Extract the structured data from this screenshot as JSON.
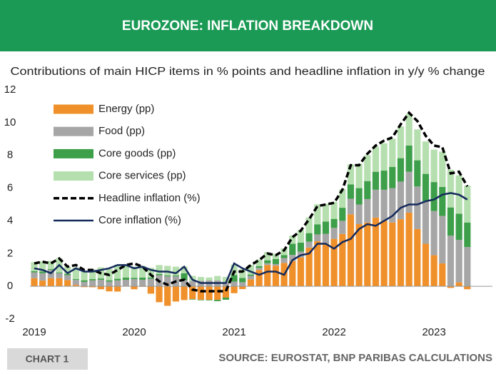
{
  "chart_data": {
    "type": "bar",
    "title": "EUROZONE: INFLATION BREAKDOWN",
    "subtitle": "Contributions of main HICP items in % points and headline inflation in y/y % change",
    "chart_label": "CHART 1",
    "source": "SOURCE: EUROSTAT, BNP PARIBAS CALCULATIONS",
    "categories": [
      "2019",
      null,
      null,
      null,
      null,
      null,
      null,
      null,
      null,
      null,
      null,
      null,
      "2020",
      null,
      null,
      null,
      null,
      null,
      null,
      null,
      null,
      null,
      null,
      null,
      "2021",
      null,
      null,
      null,
      null,
      null,
      null,
      null,
      null,
      null,
      null,
      null,
      "2022",
      null,
      null,
      null,
      null,
      null,
      null,
      null,
      null,
      null,
      null,
      null,
      "2023",
      null,
      null,
      null,
      null
    ],
    "series": [
      {
        "name": "Energy (pp)",
        "kind": "bar",
        "color": "#f0902a",
        "values": [
          0.5,
          0.35,
          0.5,
          0.5,
          0.38,
          0.09,
          -0.05,
          -0.06,
          -0.18,
          -0.31,
          -0.32,
          0.02,
          -0.18,
          -0.03,
          -0.45,
          -0.97,
          -1.19,
          -0.93,
          -0.84,
          -0.78,
          -0.82,
          -0.83,
          -0.83,
          -0.69,
          -0.42,
          -0.17,
          0.43,
          1.0,
          1.3,
          1.26,
          1.43,
          1.54,
          1.76,
          2.37,
          2.75,
          2.6,
          2.9,
          3.2,
          4.4,
          3.8,
          3.9,
          4.2,
          4.0,
          3.9,
          4.1,
          4.5,
          3.5,
          2.6,
          1.9,
          1.4,
          -0.1,
          0.24,
          -0.18
        ]
      },
      {
        "name": "Food (pp)",
        "kind": "bar",
        "color": "#a6a6a6",
        "values": [
          0.35,
          0.45,
          0.5,
          0.3,
          0.3,
          0.3,
          0.27,
          0.36,
          0.4,
          0.29,
          0.36,
          0.38,
          0.44,
          0.4,
          0.46,
          0.68,
          0.61,
          0.61,
          0.38,
          0.32,
          0.34,
          0.36,
          0.36,
          0.25,
          0.29,
          0.25,
          0.21,
          0.13,
          0.11,
          0.1,
          0.3,
          0.38,
          0.36,
          0.36,
          0.42,
          0.61,
          0.67,
          0.8,
          0.95,
          1.2,
          1.43,
          1.7,
          1.9,
          2.1,
          2.3,
          2.5,
          2.6,
          2.6,
          2.7,
          2.9,
          3.1,
          2.6,
          2.4
        ]
      },
      {
        "name": "Core goods (pp)",
        "kind": "bar",
        "color": "#3e9f4a",
        "values": [
          0.08,
          0.1,
          0.05,
          0.05,
          0.08,
          0.05,
          0.1,
          0.08,
          0.08,
          0.08,
          0.1,
          0.13,
          0.08,
          0.13,
          0.08,
          0.08,
          0.05,
          0.05,
          0.42,
          -0.03,
          -0.03,
          -0.03,
          -0.08,
          -0.13,
          0.4,
          0.26,
          0.08,
          0.1,
          0.18,
          0.31,
          0.18,
          0.68,
          0.55,
          0.52,
          0.62,
          0.75,
          0.55,
          0.8,
          0.88,
          1.0,
          1.1,
          1.1,
          1.17,
          1.3,
          1.43,
          1.6,
          1.6,
          1.67,
          1.77,
          1.77,
          1.72,
          1.6,
          1.5
        ]
      },
      {
        "name": "Core services (pp)",
        "kind": "bar",
        "color": "#b5dfae",
        "values": [
          0.54,
          0.63,
          0.5,
          0.86,
          0.45,
          0.72,
          0.54,
          0.59,
          0.68,
          0.68,
          0.86,
          0.81,
          0.68,
          0.72,
          0.59,
          0.54,
          0.59,
          0.54,
          0.41,
          0.32,
          0.23,
          0.18,
          0.27,
          0.32,
          0.63,
          0.54,
          0.59,
          0.41,
          0.5,
          0.32,
          0.41,
          0.5,
          0.77,
          0.95,
          1.22,
          1.08,
          1.04,
          1.13,
          1.22,
          1.49,
          1.58,
          1.53,
          1.67,
          1.71,
          1.94,
          1.94,
          1.89,
          1.98,
          1.98,
          2.16,
          2.3,
          2.34,
          2.25
        ]
      },
      {
        "name": "Headline inflation (%)",
        "kind": "line",
        "dashed": true,
        "color": "#000000",
        "values": [
          1.4,
          1.5,
          1.4,
          1.7,
          1.2,
          1.3,
          1.0,
          1.0,
          0.8,
          0.7,
          1.0,
          1.3,
          1.4,
          1.2,
          0.7,
          0.3,
          0.1,
          0.3,
          0.4,
          -0.2,
          -0.3,
          -0.3,
          -0.3,
          -0.3,
          0.9,
          0.9,
          1.3,
          1.6,
          2.0,
          1.9,
          2.2,
          3.0,
          3.4,
          4.1,
          4.9,
          5.0,
          5.1,
          5.9,
          7.4,
          7.4,
          8.1,
          8.6,
          8.9,
          9.1,
          9.9,
          10.6,
          10.1,
          9.2,
          8.6,
          8.5,
          6.9,
          7.0,
          6.1
        ]
      },
      {
        "name": "Core inflation (%)",
        "kind": "line",
        "dashed": false,
        "color": "#142a5c",
        "values": [
          1.1,
          1.0,
          0.8,
          1.3,
          0.8,
          1.1,
          0.9,
          0.9,
          1.0,
          1.1,
          1.3,
          1.3,
          1.1,
          1.2,
          1.0,
          0.9,
          0.9,
          0.8,
          1.2,
          0.4,
          0.2,
          0.2,
          0.2,
          0.2,
          1.4,
          1.1,
          0.9,
          0.7,
          0.9,
          0.9,
          0.7,
          1.6,
          1.9,
          2.0,
          2.6,
          2.6,
          2.3,
          2.7,
          2.9,
          3.5,
          3.8,
          3.7,
          4.0,
          4.3,
          4.8,
          5.0,
          5.0,
          5.2,
          5.3,
          5.6,
          5.7,
          5.6,
          5.3
        ]
      }
    ],
    "ylim": [
      -2,
      12
    ],
    "yticks": [
      -2,
      0,
      2,
      4,
      6,
      8,
      10,
      12
    ],
    "header_color": "#1a9a55"
  }
}
